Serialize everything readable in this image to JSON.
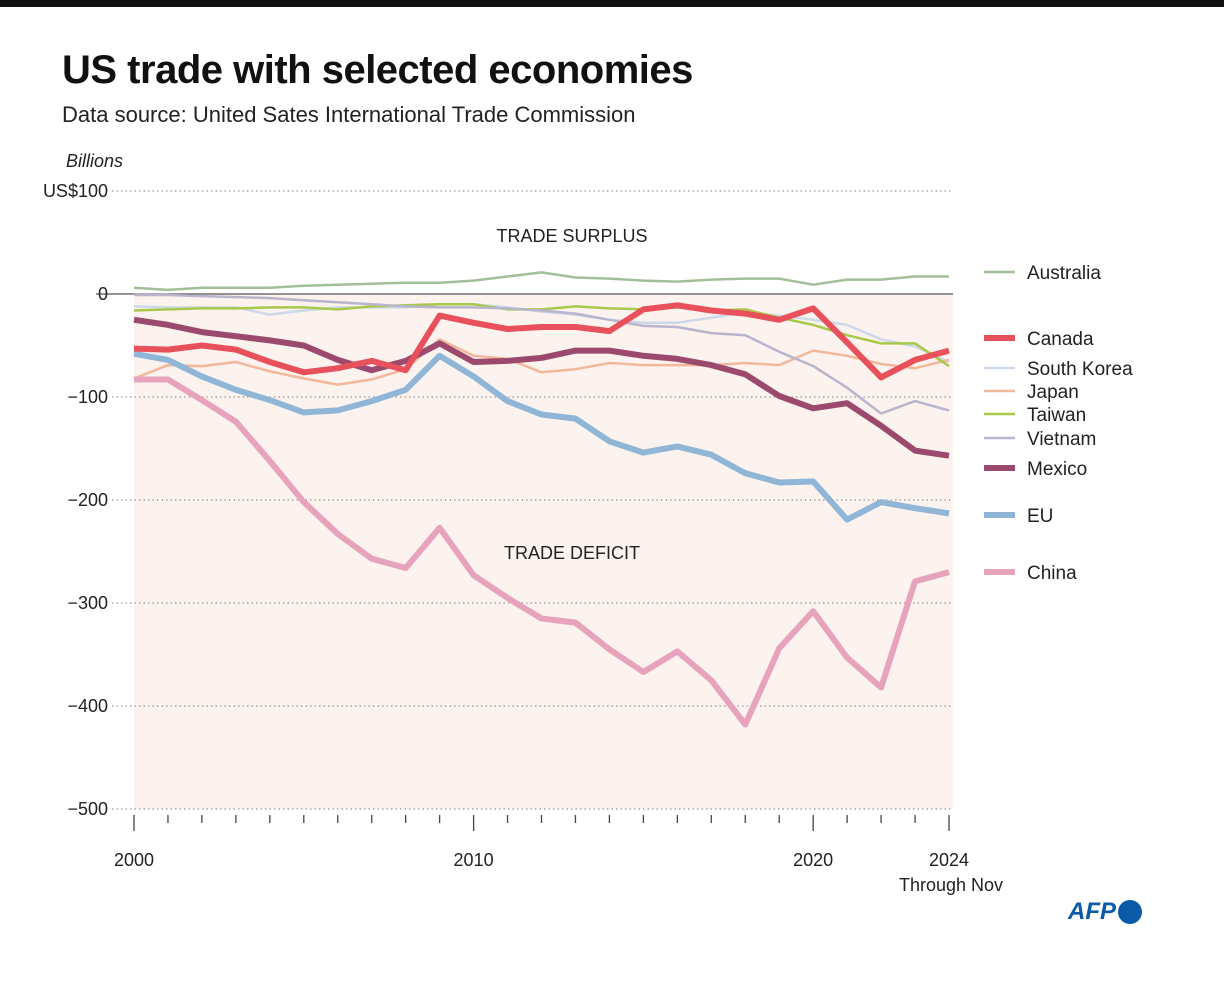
{
  "title": "US trade with selected economies",
  "subtitle": "Data source: United Sates International Trade Commission",
  "logo": "AFP",
  "chart_data": {
    "type": "line",
    "title": "US trade with selected economies",
    "ylabel": "Billions",
    "y_top_label": "US$100",
    "ylim": [
      -500,
      100
    ],
    "yticks": [
      100,
      0,
      -100,
      -200,
      -300,
      -400,
      -500
    ],
    "ytick_labels": [
      "US$100",
      "0",
      "−100",
      "−200",
      "−300",
      "−400",
      "−500"
    ],
    "xlim": [
      2000,
      2024
    ],
    "xtick_labels": [
      "2000",
      "2010",
      "2020",
      "2024"
    ],
    "x_note": "Through Nov",
    "grid": "horizontal dotted",
    "legend": "right",
    "annotations": [
      "TRADE SURPLUS",
      "TRADE DEFICIT"
    ],
    "x": [
      2000,
      2001,
      2002,
      2003,
      2004,
      2005,
      2006,
      2007,
      2008,
      2009,
      2010,
      2011,
      2012,
      2013,
      2014,
      2015,
      2016,
      2017,
      2018,
      2019,
      2020,
      2021,
      2022,
      2023,
      2024
    ],
    "series": [
      {
        "name": "Australia",
        "color": "#a3bf9a",
        "thick": false,
        "values": [
          6,
          4,
          6,
          6,
          6,
          8,
          9,
          10,
          11,
          11,
          13,
          17,
          21,
          16,
          15,
          13,
          12,
          14,
          15,
          15,
          9,
          14,
          14,
          17,
          17
        ]
      },
      {
        "name": "South Korea",
        "color": "#cdd9ea",
        "thick": false,
        "values": [
          -12,
          -13,
          -13,
          -13,
          -20,
          -16,
          -13,
          -13,
          -13,
          -10,
          -10,
          -13,
          -17,
          -20,
          -25,
          -28,
          -28,
          -23,
          -18,
          -21,
          -25,
          -30,
          -44,
          -51,
          -66
        ]
      },
      {
        "name": "Japan",
        "color": "#f3b899",
        "thick": false,
        "values": [
          -82,
          -69,
          -70,
          -66,
          -75,
          -82,
          -88,
          -83,
          -73,
          -44,
          -60,
          -63,
          -76,
          -73,
          -67,
          -69,
          -69,
          -69,
          -67,
          -69,
          -55,
          -60,
          -68,
          -72,
          -64
        ]
      },
      {
        "name": "Taiwan",
        "color": "#a8c94a",
        "thick": false,
        "values": [
          -16,
          -15,
          -14,
          -14,
          -13,
          -13,
          -15,
          -12,
          -11,
          -10,
          -10,
          -15,
          -15,
          -12,
          -14,
          -15,
          -13,
          -16,
          -15,
          -23,
          -30,
          -40,
          -48,
          -48,
          -70
        ]
      },
      {
        "name": "Vietnam",
        "color": "#b9b5cc",
        "thick": false,
        "values": [
          -1,
          -1,
          -2,
          -3,
          -4,
          -6,
          -8,
          -10,
          -12,
          -13,
          -13,
          -14,
          -16,
          -19,
          -25,
          -31,
          -32,
          -38,
          -40,
          -56,
          -70,
          -91,
          -116,
          -104,
          -113
        ]
      },
      {
        "name": "China",
        "color": "#e8a3bc",
        "thick": true,
        "values": [
          -83,
          -83,
          -103,
          -124,
          -162,
          -202,
          -233,
          -257,
          -266,
          -227,
          -273,
          -295,
          -315,
          -319,
          -345,
          -367,
          -347,
          -375,
          -418,
          -344,
          -308,
          -353,
          -382,
          -279,
          -270
        ]
      },
      {
        "name": "EU",
        "color": "#8fb6d6",
        "thick": true,
        "values": [
          -58,
          -64,
          -80,
          -93,
          -103,
          -115,
          -113,
          -104,
          -93,
          -60,
          -80,
          -104,
          -117,
          -121,
          -143,
          -154,
          -148,
          -156,
          -174,
          -183,
          -182,
          -219,
          -202,
          -208,
          -213
        ]
      },
      {
        "name": "Mexico",
        "color": "#9b4a6e",
        "thick": true,
        "values": [
          -25,
          -30,
          -37,
          -41,
          -45,
          -50,
          -64,
          -74,
          -65,
          -48,
          -66,
          -65,
          -62,
          -55,
          -55,
          -60,
          -63,
          -69,
          -78,
          -99,
          -111,
          -106,
          -128,
          -152,
          -157
        ]
      },
      {
        "name": "Canada",
        "color": "#e8515c",
        "thick": true,
        "values": [
          -53,
          -54,
          -50,
          -54,
          -66,
          -76,
          -72,
          -65,
          -74,
          -21,
          -28,
          -34,
          -32,
          -32,
          -36,
          -15,
          -11,
          -16,
          -19,
          -25,
          -14,
          -47,
          -81,
          -64,
          -55
        ]
      }
    ],
    "legend_order": [
      "Australia",
      "Canada",
      "South Korea",
      "Japan",
      "Taiwan",
      "Vietnam",
      "Mexico",
      "EU",
      "China"
    ]
  }
}
